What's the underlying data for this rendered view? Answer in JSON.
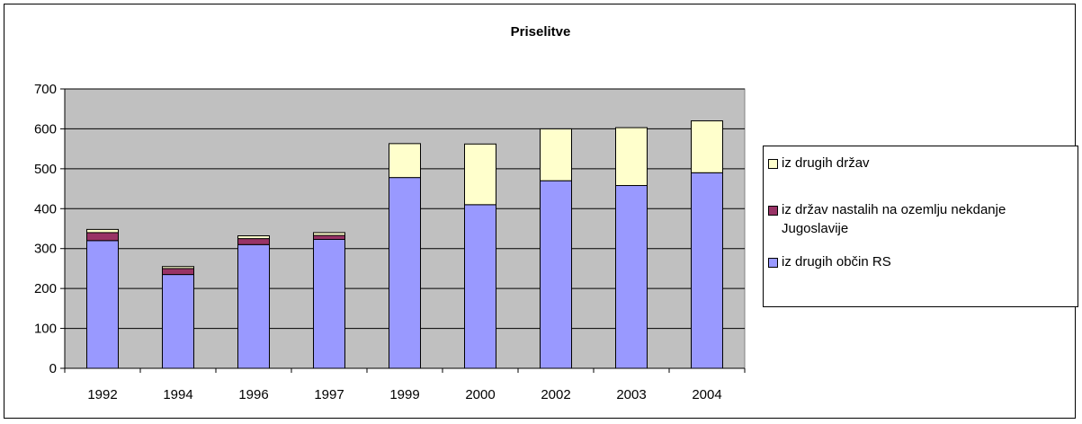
{
  "chart_data": {
    "type": "bar",
    "stacked": true,
    "title": "Priselitve",
    "xlabel": "",
    "ylabel": "",
    "categories": [
      "1992",
      "1994",
      "1996",
      "1997",
      "1999",
      "2000",
      "2002",
      "2003",
      "2004"
    ],
    "ylim": [
      0,
      700
    ],
    "yticks": [
      0,
      100,
      200,
      300,
      400,
      500,
      600,
      700
    ],
    "grid": true,
    "legend_position": "right",
    "series": [
      {
        "name": "iz drugih občin RS",
        "color": "#9999ff",
        "values": [
          320,
          235,
          310,
          323,
          478,
          410,
          470,
          458,
          490
        ]
      },
      {
        "name": "iz držav nastalih na ozemlju nekdanje Jugoslavije",
        "color": "#993366",
        "values": [
          20,
          15,
          15,
          10,
          0,
          0,
          0,
          0,
          0
        ]
      },
      {
        "name": "iz drugih držav",
        "color": "#ffffcc",
        "values": [
          8,
          5,
          7,
          7,
          85,
          152,
          130,
          145,
          130
        ]
      }
    ],
    "legend_order": [
      2,
      1,
      0
    ],
    "plot_background": "#c0c0c0"
  }
}
